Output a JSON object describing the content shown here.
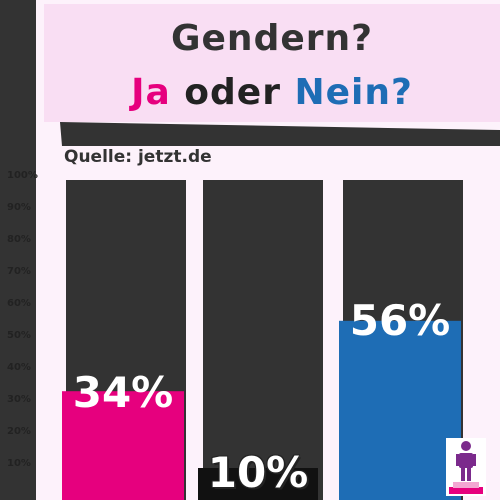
{
  "header": {
    "line1": "Gendern?",
    "line2_ja": "Ja",
    "line2_oder": "oder",
    "line2_nein": "Nein?"
  },
  "source": "Quelle: jetzt.de",
  "colors": {
    "ja": "#e6007e",
    "neutral": "#111111",
    "nein": "#1e6db5",
    "track": "#333333",
    "background": "#fdf2fb"
  },
  "icon": "person-on-podium-icon",
  "chart_data": {
    "type": "bar",
    "categories": [
      "",
      "",
      ""
    ],
    "values": [
      34,
      10,
      56
    ],
    "value_labels": [
      "34%",
      "10%",
      "56%"
    ],
    "y_ticks": [
      "10%",
      "20%",
      "30%",
      "40%",
      "50%",
      "60%",
      "70%",
      "80%",
      "90%",
      "100%"
    ],
    "ylim": [
      0,
      100
    ],
    "title": "",
    "xlabel": "",
    "ylabel": ""
  }
}
